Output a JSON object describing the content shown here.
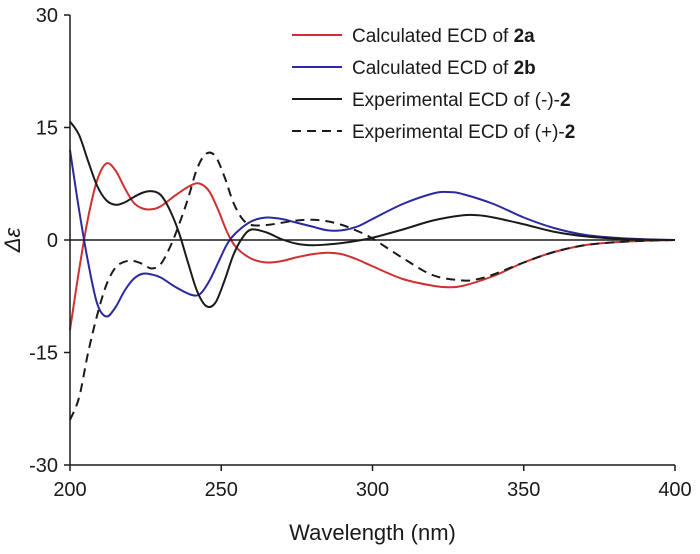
{
  "chart_data": {
    "type": "line",
    "title": "",
    "xlabel": "Wavelength (nm)",
    "ylabel": "Δε",
    "xlim": [
      200,
      400
    ],
    "ylim": [
      -30,
      30
    ],
    "x_ticks": [
      200,
      250,
      300,
      350,
      400
    ],
    "y_ticks": [
      30,
      15,
      0,
      -15,
      -30
    ],
    "x_tick_labels": [
      "200",
      "250",
      "300",
      "350",
      "400"
    ],
    "y_tick_labels": [
      "30",
      "15",
      "0",
      "-15",
      "-30"
    ],
    "grid": false,
    "zero_line": true,
    "legend_position": "top-right",
    "series": [
      {
        "name": "Calculated ECD of 2a",
        "legend_parts": [
          "Calculated ECD of ",
          "2a"
        ],
        "color": "#d03030",
        "dash": "solid",
        "points": [
          [
            200,
            -12
          ],
          [
            203,
            -4
          ],
          [
            206,
            3
          ],
          [
            209,
            8
          ],
          [
            212,
            10.2
          ],
          [
            215,
            9.3
          ],
          [
            218,
            7
          ],
          [
            221,
            5
          ],
          [
            224,
            4.2
          ],
          [
            227,
            4.1
          ],
          [
            230,
            4.5
          ],
          [
            235,
            6
          ],
          [
            240,
            7.3
          ],
          [
            243,
            7.5
          ],
          [
            246,
            6.5
          ],
          [
            249,
            4
          ],
          [
            252,
            1
          ],
          [
            255,
            -1
          ],
          [
            260,
            -2.5
          ],
          [
            265,
            -3
          ],
          [
            270,
            -2.8
          ],
          [
            275,
            -2.3
          ],
          [
            280,
            -1.9
          ],
          [
            285,
            -1.7
          ],
          [
            290,
            -1.9
          ],
          [
            295,
            -2.6
          ],
          [
            300,
            -3.5
          ],
          [
            310,
            -5.2
          ],
          [
            320,
            -6.1
          ],
          [
            325,
            -6.3
          ],
          [
            330,
            -6.1
          ],
          [
            340,
            -4.8
          ],
          [
            350,
            -3
          ],
          [
            360,
            -1.6
          ],
          [
            370,
            -0.7
          ],
          [
            380,
            -0.3
          ],
          [
            390,
            -0.1
          ],
          [
            400,
            0
          ]
        ]
      },
      {
        "name": "Calculated ECD of 2b",
        "legend_parts": [
          "Calculated ECD of ",
          "2b"
        ],
        "color": "#2a2aa0",
        "dash": "solid",
        "points": [
          [
            200,
            12
          ],
          [
            203,
            4
          ],
          [
            206,
            -3
          ],
          [
            209,
            -8.5
          ],
          [
            212,
            -10.2
          ],
          [
            215,
            -9
          ],
          [
            218,
            -6.8
          ],
          [
            221,
            -5.2
          ],
          [
            224,
            -4.5
          ],
          [
            227,
            -4.6
          ],
          [
            230,
            -5
          ],
          [
            235,
            -6.3
          ],
          [
            240,
            -7.3
          ],
          [
            243,
            -7.2
          ],
          [
            246,
            -5.5
          ],
          [
            249,
            -3
          ],
          [
            252,
            -0.5
          ],
          [
            255,
            1
          ],
          [
            260,
            2.5
          ],
          [
            265,
            3
          ],
          [
            270,
            2.8
          ],
          [
            275,
            2.3
          ],
          [
            280,
            1.8
          ],
          [
            285,
            1.3
          ],
          [
            290,
            1.3
          ],
          [
            295,
            1.8
          ],
          [
            300,
            2.8
          ],
          [
            310,
            4.8
          ],
          [
            320,
            6.2
          ],
          [
            325,
            6.4
          ],
          [
            330,
            6.1
          ],
          [
            340,
            4.8
          ],
          [
            350,
            3
          ],
          [
            360,
            1.6
          ],
          [
            370,
            0.7
          ],
          [
            380,
            0.3
          ],
          [
            390,
            0.1
          ],
          [
            400,
            0
          ]
        ]
      },
      {
        "name": "Experimental ECD of (-)-2",
        "legend_parts": [
          "Experimental ECD of (-)-",
          "2"
        ],
        "color": "#1a1a1a",
        "dash": "solid",
        "points": [
          [
            200,
            15.8
          ],
          [
            203,
            14
          ],
          [
            206,
            10.5
          ],
          [
            209,
            7.2
          ],
          [
            212,
            5.3
          ],
          [
            215,
            4.7
          ],
          [
            218,
            5
          ],
          [
            221,
            5.7
          ],
          [
            224,
            6.3
          ],
          [
            227,
            6.5
          ],
          [
            230,
            6
          ],
          [
            233,
            4
          ],
          [
            236,
            1
          ],
          [
            239,
            -3
          ],
          [
            242,
            -6.8
          ],
          [
            245,
            -8.8
          ],
          [
            248,
            -8.4
          ],
          [
            251,
            -5.5
          ],
          [
            254,
            -2
          ],
          [
            257,
            0.3
          ],
          [
            260,
            1.4
          ],
          [
            265,
            1
          ],
          [
            270,
            0.1
          ],
          [
            275,
            -0.5
          ],
          [
            280,
            -0.7
          ],
          [
            285,
            -0.6
          ],
          [
            290,
            -0.4
          ],
          [
            295,
            -0.1
          ],
          [
            300,
            0.3
          ],
          [
            310,
            1.4
          ],
          [
            320,
            2.6
          ],
          [
            330,
            3.3
          ],
          [
            335,
            3.3
          ],
          [
            340,
            3
          ],
          [
            350,
            2.1
          ],
          [
            360,
            1.1
          ],
          [
            370,
            0.5
          ],
          [
            380,
            0.2
          ],
          [
            390,
            0.05
          ],
          [
            400,
            0
          ]
        ]
      },
      {
        "name": "Experimental ECD of (+)-2",
        "legend_parts": [
          "Experimental ECD of (+)-",
          "2"
        ],
        "color": "#1a1a1a",
        "dash": "dashed",
        "points": [
          [
            200,
            -24
          ],
          [
            203,
            -21
          ],
          [
            206,
            -15
          ],
          [
            209,
            -10
          ],
          [
            212,
            -6
          ],
          [
            215,
            -3.7
          ],
          [
            218,
            -2.9
          ],
          [
            221,
            -2.8
          ],
          [
            224,
            -3.2
          ],
          [
            227,
            -3.8
          ],
          [
            230,
            -3.2
          ],
          [
            233,
            -1
          ],
          [
            236,
            2
          ],
          [
            239,
            5.5
          ],
          [
            242,
            9.5
          ],
          [
            245,
            11.5
          ],
          [
            248,
            11.2
          ],
          [
            251,
            8.5
          ],
          [
            254,
            5
          ],
          [
            257,
            2.8
          ],
          [
            260,
            2
          ],
          [
            265,
            2
          ],
          [
            270,
            2.3
          ],
          [
            275,
            2.6
          ],
          [
            280,
            2.7
          ],
          [
            285,
            2.5
          ],
          [
            290,
            2
          ],
          [
            295,
            1.2
          ],
          [
            300,
            0.2
          ],
          [
            310,
            -2.4
          ],
          [
            320,
            -4.7
          ],
          [
            330,
            -5.4
          ],
          [
            335,
            -5.2
          ],
          [
            340,
            -4.6
          ],
          [
            350,
            -3
          ],
          [
            360,
            -1.6
          ],
          [
            370,
            -0.7
          ],
          [
            380,
            -0.3
          ],
          [
            390,
            -0.1
          ],
          [
            400,
            0
          ]
        ]
      }
    ]
  }
}
